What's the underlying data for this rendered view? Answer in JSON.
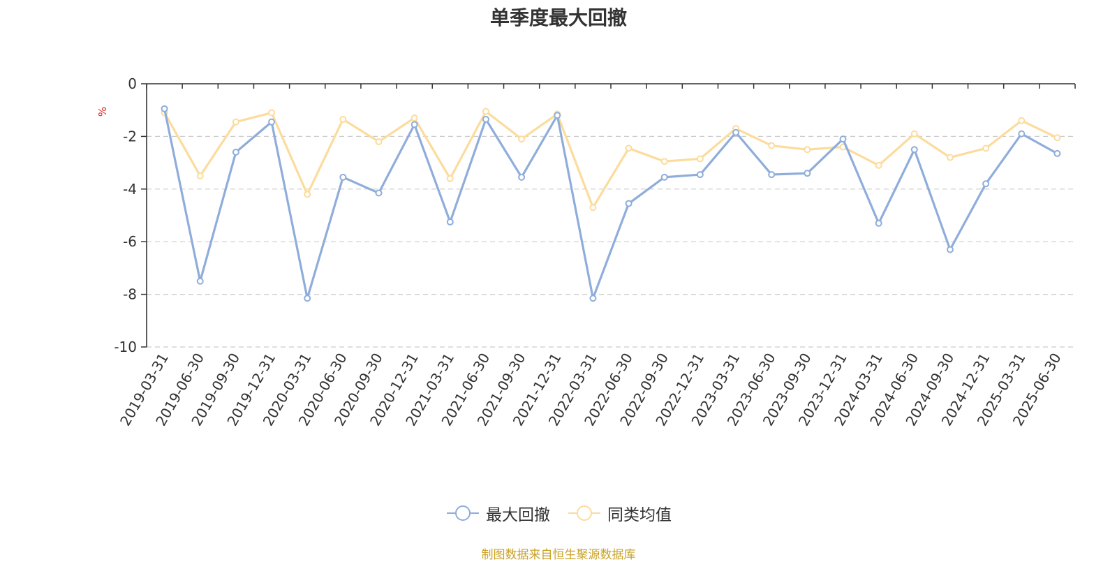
{
  "title": "单季度最大回撤",
  "source_note": "制图数据来自恒生聚源数据库",
  "legend_placement": "bottom-center",
  "chart_data": {
    "type": "line",
    "title": "单季度最大回撤",
    "ylabel": "%",
    "xlabel": "",
    "ylim": [
      -10,
      0
    ],
    "yticks": [
      0,
      -2,
      -4,
      -6,
      -8,
      -10
    ],
    "grid": "horizontal-dashed",
    "categories": [
      "2019-03-31",
      "2019-06-30",
      "2019-09-30",
      "2019-12-31",
      "2020-03-31",
      "2020-06-30",
      "2020-09-30",
      "2020-12-31",
      "2021-03-31",
      "2021-06-30",
      "2021-09-30",
      "2021-12-31",
      "2022-03-31",
      "2022-06-30",
      "2022-09-30",
      "2022-12-31",
      "2023-03-31",
      "2023-06-30",
      "2023-09-30",
      "2023-12-31",
      "2024-03-31",
      "2024-06-30",
      "2024-09-30",
      "2024-12-31",
      "2025-03-31",
      "2025-06-30"
    ],
    "series": [
      {
        "name": "最大回撤",
        "color": "#8FADDB",
        "values": [
          -0.95,
          -7.5,
          -2.6,
          -1.45,
          -8.15,
          -3.55,
          -4.15,
          -1.55,
          -5.25,
          -1.35,
          -3.55,
          -1.2,
          -8.15,
          -4.55,
          -3.55,
          -3.45,
          -1.85,
          -3.45,
          -3.4,
          -2.1,
          -5.3,
          -2.5,
          -6.3,
          -3.8,
          -1.9,
          -2.65
        ]
      },
      {
        "name": "同类均值",
        "color": "#FCDC9C",
        "values": [
          -1.1,
          -3.5,
          -1.45,
          -1.1,
          -4.2,
          -1.35,
          -2.2,
          -1.3,
          -3.6,
          -1.05,
          -2.1,
          -1.15,
          -4.7,
          -2.45,
          -2.95,
          -2.85,
          -1.7,
          -2.35,
          -2.5,
          -2.4,
          -3.1,
          -1.9,
          -2.8,
          -2.45,
          -1.4,
          -2.05
        ]
      }
    ]
  }
}
